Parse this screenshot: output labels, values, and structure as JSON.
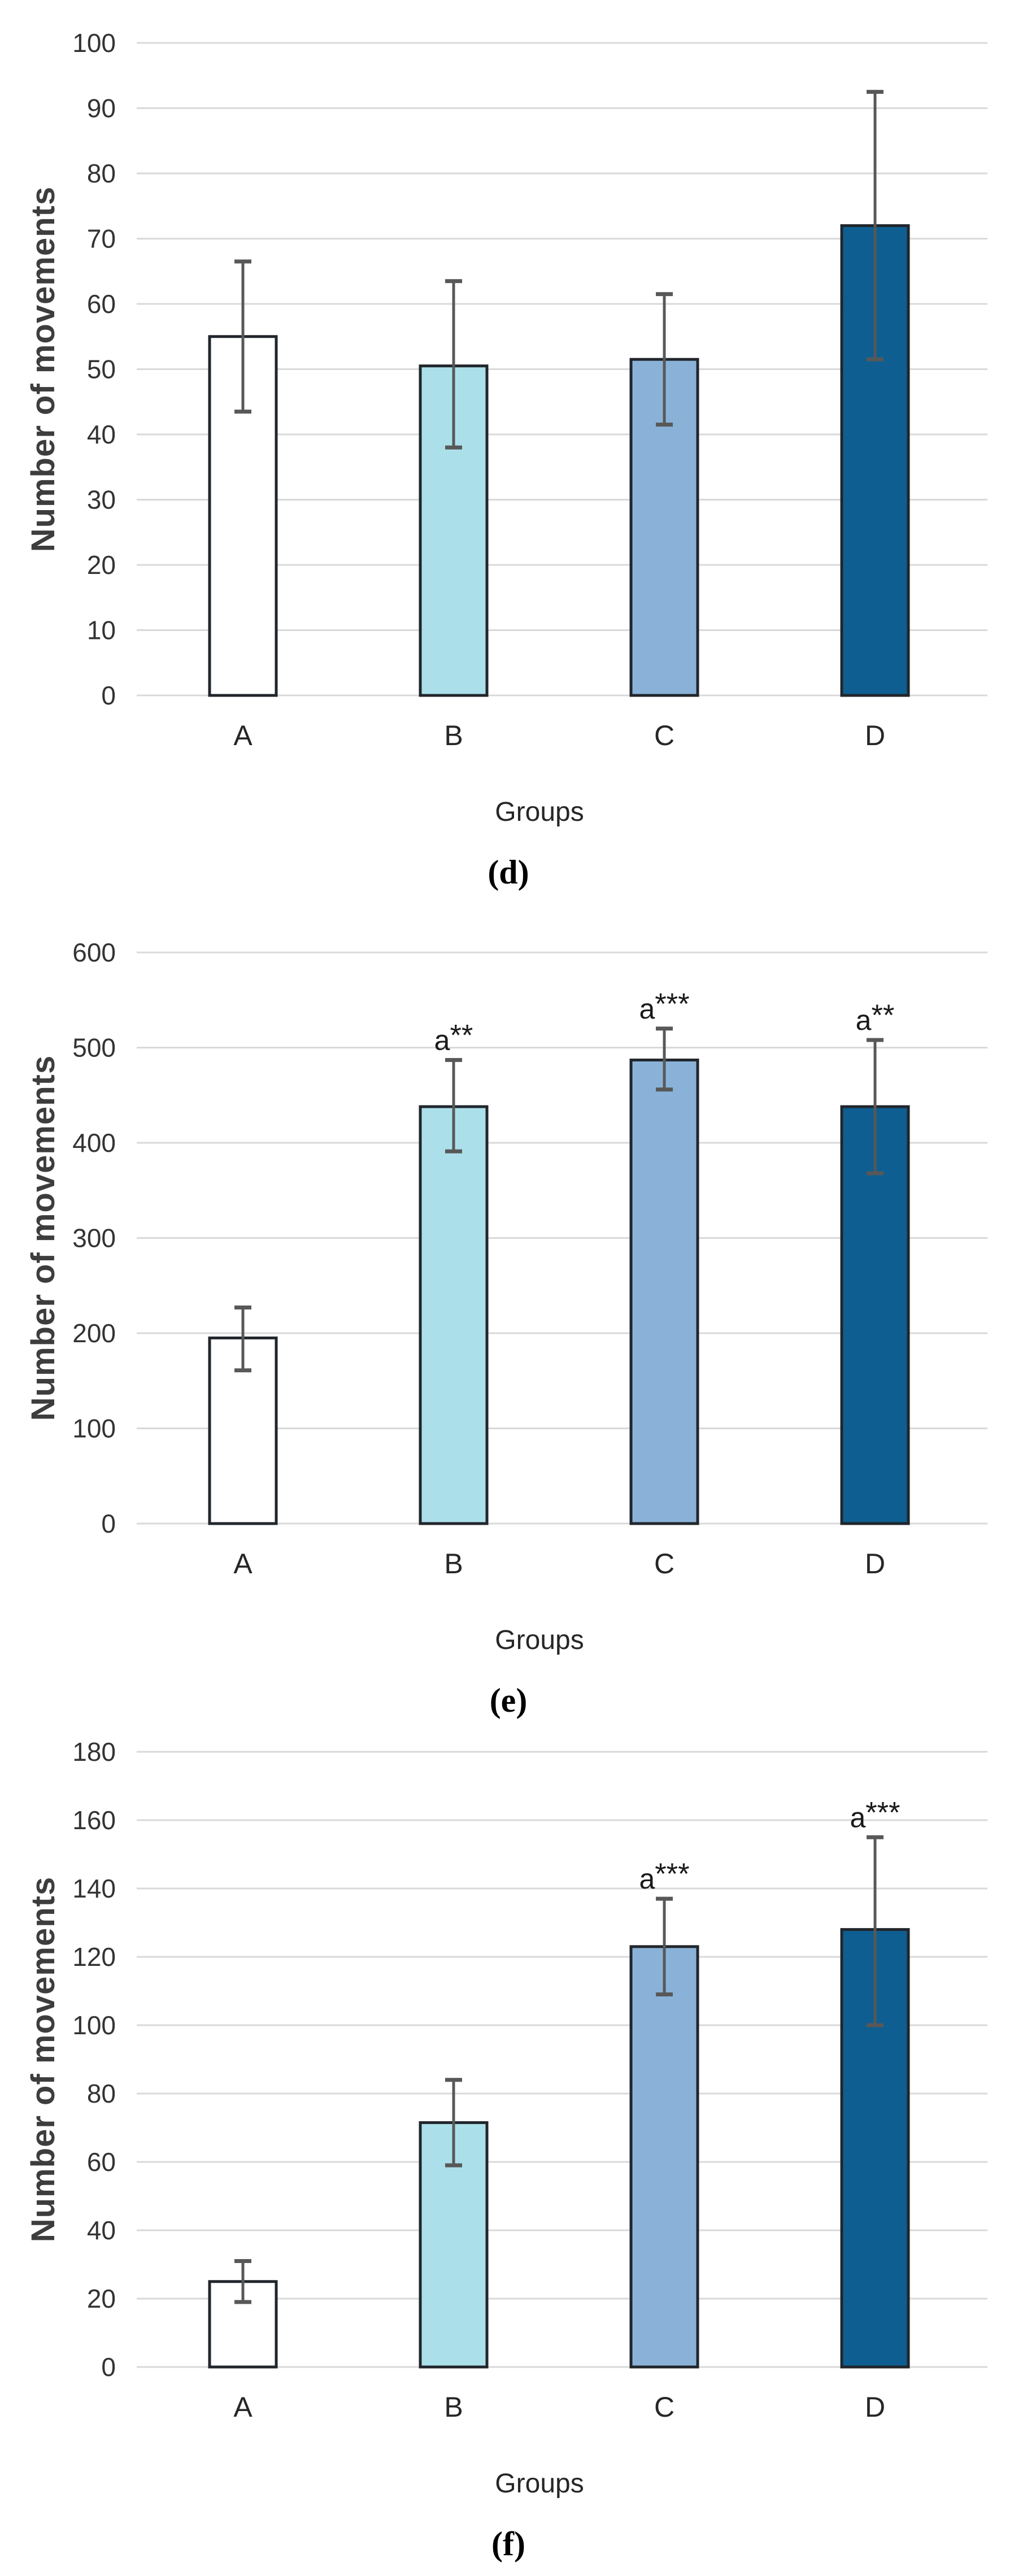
{
  "figure": {
    "background": "#ffffff",
    "ylabel": "Number of movements",
    "xlabel": "Groups"
  },
  "colors": {
    "grid": "#d9d9d9",
    "bar_border": "#21262c",
    "error_bar": "#585858",
    "bar_fill_A": "#ffffff",
    "bar_fill_B": "#abe0ea",
    "bar_fill_C": "#8ab2d8",
    "bar_fill_D": "#0e5e91"
  },
  "chart_data": [
    {
      "type": "bar",
      "panel": "d",
      "caption": "(d)",
      "title": "",
      "xlabel": "Groups",
      "ylabel": "Number of movements",
      "categories": [
        "A",
        "B",
        "C",
        "D"
      ],
      "values": [
        55,
        50.5,
        51.5,
        72
      ],
      "error_low": [
        43.5,
        38,
        41.5,
        51.5
      ],
      "error_high": [
        66.5,
        63.5,
        61.5,
        92.5
      ],
      "annotations": [
        "",
        "",
        "",
        ""
      ],
      "bar_colors": [
        "#ffffff",
        "#abe0ea",
        "#8ab2d8",
        "#0e5e91"
      ],
      "ylim": [
        0,
        100
      ],
      "ytick_step": 10,
      "grid": true,
      "legend": false
    },
    {
      "type": "bar",
      "panel": "e",
      "caption": "(e)",
      "title": "",
      "xlabel": "Groups",
      "ylabel": "Number of movements",
      "categories": [
        "A",
        "B",
        "C",
        "D"
      ],
      "values": [
        195,
        438,
        487,
        438
      ],
      "error_low": [
        161,
        391,
        456,
        368
      ],
      "error_high": [
        227,
        487,
        520,
        508
      ],
      "annotations": [
        "",
        "a**",
        "a***",
        "a**"
      ],
      "bar_colors": [
        "#ffffff",
        "#abe0ea",
        "#8ab2d8",
        "#0e5e91"
      ],
      "ylim": [
        0,
        600
      ],
      "ytick_step": 100,
      "grid": true,
      "legend": false
    },
    {
      "type": "bar",
      "panel": "f",
      "caption": "(f)",
      "title": "",
      "xlabel": "Groups",
      "ylabel": "Number of movements",
      "categories": [
        "A",
        "B",
        "C",
        "D"
      ],
      "values": [
        25,
        71.5,
        123,
        128
      ],
      "error_low": [
        19,
        59,
        109,
        100
      ],
      "error_high": [
        31,
        84,
        137,
        155
      ],
      "annotations": [
        "",
        "",
        "a***",
        "a***"
      ],
      "bar_colors": [
        "#ffffff",
        "#abe0ea",
        "#8ab2d8",
        "#0e5e91"
      ],
      "ylim": [
        0,
        180
      ],
      "ytick_step": 20,
      "grid": true,
      "legend": false
    }
  ]
}
